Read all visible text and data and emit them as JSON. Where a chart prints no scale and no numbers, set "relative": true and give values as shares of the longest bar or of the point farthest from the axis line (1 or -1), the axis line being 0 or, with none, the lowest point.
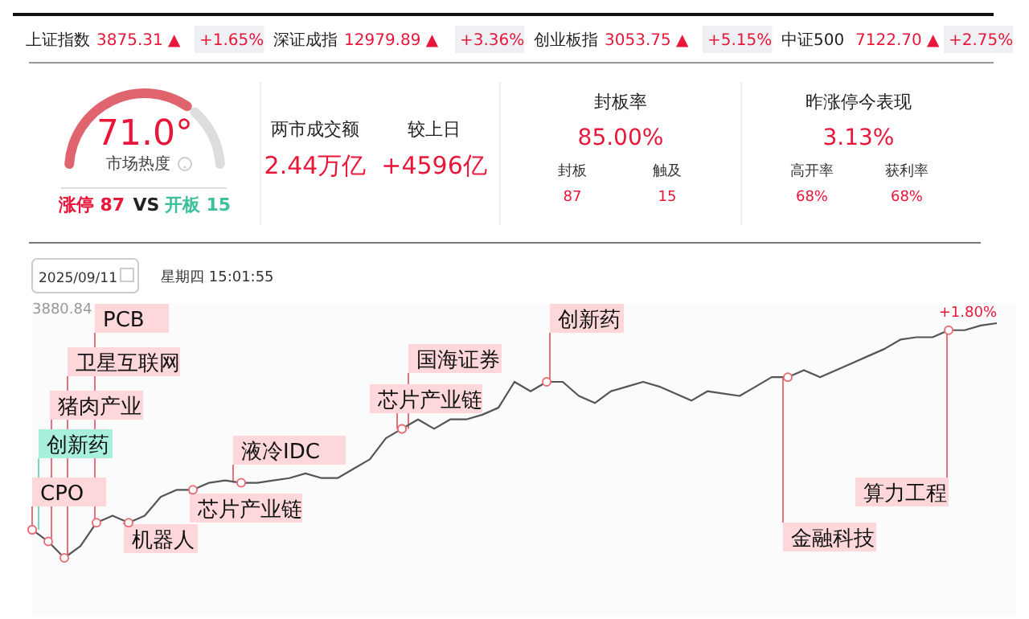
{
  "chart_data": [
    {
      "type": "other",
      "annotations": [
        "上证指数",
        "3875.31 ▲",
        "+1.65%",
        "深证成指",
        "12979.89 ▲",
        "+3.36%",
        "创业板指",
        "3053.75 ▲",
        "+5.15%",
        "中证500",
        "7122.70 ▲",
        "+2.75%"
      ]
    },
    {
      "type": "donut",
      "categories": [
        null,
        null
      ],
      "values": [
        71,
        29
      ],
      "colors": [
        "#e0646e",
        "#dddddd"
      ],
      "annotations": [
        "71.0°",
        "市场热度",
        "涨停 87",
        "VS",
        "开板 15"
      ]
    },
    {
      "type": "other",
      "annotations": [
        "两市成交额",
        "2.44万亿",
        "较上日",
        "+4596亿",
        "封板率",
        "85.00%",
        "封板",
        "87",
        "触及",
        "15",
        "昨涨停今表现",
        "3.13%",
        "高开率",
        "68%",
        "获利率",
        "68%"
      ]
    },
    {
      "type": "line",
      "relative": true,
      "subtitle": "星期四 15:01:55",
      "title": "2025/09/11",
      "categories": [
        null,
        null,
        null,
        null,
        null,
        null,
        null,
        null,
        null,
        null,
        null,
        null,
        null,
        null,
        null,
        null,
        null,
        null,
        null,
        null,
        null,
        null,
        null,
        null,
        null,
        null,
        null,
        null,
        null,
        null,
        null,
        null,
        null,
        null,
        null,
        null,
        null,
        null,
        null,
        null,
        null,
        null,
        null,
        null,
        null,
        null,
        null,
        null,
        null,
        null,
        null,
        null,
        null,
        null,
        null,
        null,
        null,
        null,
        null,
        null,
        null
      ],
      "series": [
        {
          "color": "#555555",
          "values": [
            0.12,
            0.07,
            0,
            0.05,
            0.15,
            0.18,
            0.15,
            0.18,
            0.26,
            0.29,
            0.29,
            0.32,
            0.33,
            0.32,
            0.32,
            0.33,
            0.34,
            0.36,
            0.34,
            0.34,
            0.38,
            0.42,
            0.51,
            0.55,
            0.59,
            0.55,
            0.59,
            0.59,
            0.61,
            0.64,
            0.75,
            0.71,
            0.75,
            0.75,
            0.69,
            0.66,
            0.71,
            0.73,
            0.75,
            0.73,
            0.7,
            0.67,
            0.71,
            0.7,
            0.69,
            0.73,
            0.77,
            0.77,
            0.8,
            0.77,
            0.8,
            0.83,
            0.86,
            0.89,
            0.93,
            0.94,
            0.94,
            0.97,
            0.97,
            0.99,
            1
          ]
        }
      ],
      "annotations": [
        "CPO",
        "创新药",
        "猪肉产业",
        "卫星互联网",
        "PCB",
        "机器人",
        "芯片产业链",
        "液冷IDC",
        "芯片产业链",
        "国海证券",
        "创新药",
        "金融科技",
        "算力工程",
        "+1.80%",
        "3880.84"
      ]
    }
  ]
}
